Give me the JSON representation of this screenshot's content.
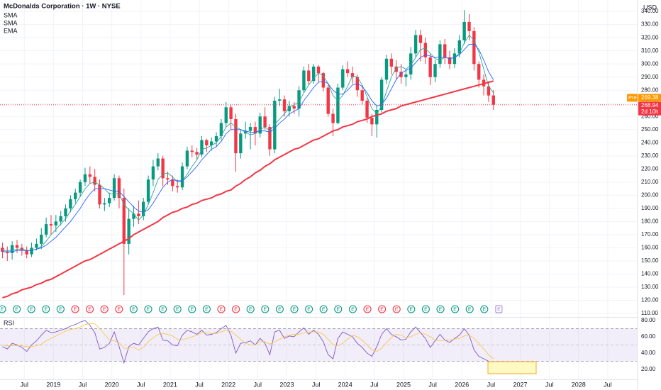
{
  "chart_data": {
    "type": "candlestick",
    "title": "McDonalds Corporation · 1W · NYSE",
    "currency": "USD",
    "x": [
      "2018-02",
      "2018-03",
      "2018-04",
      "2018-05",
      "2018-06",
      "2018-07",
      "2018-08",
      "2018-09",
      "2018-10",
      "2018-11",
      "2018-12",
      "2019-01",
      "2019-02",
      "2019-03",
      "2019-04",
      "2019-05",
      "2019-06",
      "2019-07",
      "2019-08",
      "2019-09",
      "2019-10",
      "2019-11",
      "2019-12",
      "2020-01",
      "2020-02",
      "2020-03",
      "2020-04",
      "2020-05",
      "2020-06",
      "2020-07",
      "2020-08",
      "2020-09",
      "2020-10",
      "2020-11",
      "2020-12",
      "2021-01",
      "2021-02",
      "2021-03",
      "2021-04",
      "2021-05",
      "2021-06",
      "2021-07",
      "2021-08",
      "2021-09",
      "2021-10",
      "2021-11",
      "2021-12",
      "2022-01",
      "2022-02",
      "2022-03",
      "2022-04",
      "2022-05",
      "2022-06",
      "2022-07",
      "2022-08",
      "2022-09",
      "2022-10",
      "2022-11",
      "2022-12",
      "2023-01",
      "2023-02",
      "2023-03",
      "2023-04",
      "2023-05",
      "2023-06",
      "2023-07",
      "2023-08",
      "2023-09",
      "2023-10",
      "2023-11",
      "2023-12",
      "2024-01",
      "2024-02",
      "2024-03",
      "2024-04",
      "2024-05",
      "2024-06",
      "2024-07",
      "2024-08",
      "2024-09",
      "2024-10",
      "2024-11",
      "2024-12",
      "2025-01",
      "2025-02",
      "2025-03",
      "2025-04",
      "2025-05",
      "2025-06",
      "2025-07",
      "2025-08",
      "2025-09",
      "2025-10",
      "2025-11",
      "2025-12",
      "2026-01",
      "2026-02",
      "2026-03",
      "2026-04",
      "2026-05",
      "2026-06",
      "2026-07"
    ],
    "open": [
      160,
      157,
      156,
      162,
      160,
      158,
      155,
      160,
      163,
      170,
      178,
      177,
      180,
      184,
      190,
      197,
      202,
      210,
      216,
      214,
      208,
      193,
      194,
      198,
      213,
      198,
      163,
      182,
      186,
      184,
      195,
      212,
      222,
      228,
      213,
      212,
      207,
      206,
      222,
      234,
      233,
      231,
      242,
      238,
      241,
      245,
      255,
      267,
      258,
      232,
      247,
      249,
      252,
      247,
      260,
      252,
      235,
      272,
      273,
      264,
      268,
      266,
      280,
      295,
      287,
      298,
      293,
      282,
      262,
      255,
      282,
      296,
      293,
      290,
      280,
      272,
      259,
      254,
      265,
      288,
      304,
      298,
      294,
      290,
      292,
      308,
      322,
      316,
      305,
      290,
      300,
      315,
      305,
      300,
      308,
      318,
      332,
      325,
      300,
      288,
      283,
      276
    ],
    "high": [
      164,
      161,
      165,
      166,
      163,
      161,
      164,
      167,
      175,
      183,
      185,
      185,
      188,
      193,
      200,
      205,
      212,
      221,
      222,
      220,
      212,
      198,
      202,
      216,
      215,
      205,
      190,
      192,
      196,
      198,
      215,
      227,
      232,
      230,
      218,
      215,
      212,
      225,
      237,
      238,
      236,
      245,
      243,
      244,
      248,
      258,
      271,
      269,
      262,
      250,
      256,
      255,
      256,
      263,
      267,
      254,
      275,
      281,
      276,
      272,
      271,
      283,
      298,
      300,
      300,
      299,
      294,
      284,
      266,
      285,
      299,
      302,
      298,
      292,
      284,
      274,
      262,
      268,
      290,
      307,
      308,
      303,
      300,
      296,
      313,
      326,
      326,
      320,
      308,
      303,
      318,
      319,
      310,
      312,
      322,
      341,
      338,
      328,
      302,
      292,
      287,
      280
    ],
    "low": [
      152,
      150,
      151,
      156,
      154,
      152,
      153,
      158,
      159,
      168,
      170,
      172,
      177,
      180,
      187,
      194,
      199,
      207,
      209,
      203,
      190,
      188,
      191,
      196,
      190,
      124,
      155,
      176,
      178,
      181,
      193,
      207,
      219,
      207,
      208,
      203,
      202,
      204,
      220,
      229,
      227,
      229,
      233,
      234,
      237,
      242,
      252,
      250,
      218,
      228,
      243,
      235,
      238,
      244,
      250,
      230,
      232,
      268,
      260,
      260,
      262,
      260,
      278,
      284,
      285,
      286,
      279,
      260,
      245,
      254,
      280,
      290,
      285,
      275,
      269,
      255,
      245,
      244,
      263,
      285,
      292,
      288,
      285,
      283,
      288,
      305,
      302,
      300,
      284,
      286,
      297,
      300,
      296,
      297,
      305,
      315,
      318,
      295,
      282,
      276,
      271,
      265
    ],
    "close": [
      157,
      156,
      162,
      160,
      158,
      155,
      160,
      163,
      170,
      178,
      177,
      180,
      184,
      190,
      197,
      202,
      210,
      216,
      214,
      208,
      193,
      194,
      198,
      213,
      198,
      163,
      182,
      186,
      184,
      195,
      212,
      222,
      228,
      213,
      212,
      207,
      206,
      222,
      234,
      233,
      231,
      242,
      238,
      241,
      245,
      255,
      267,
      258,
      232,
      247,
      249,
      252,
      247,
      260,
      252,
      235,
      272,
      273,
      264,
      268,
      266,
      280,
      295,
      287,
      298,
      293,
      282,
      262,
      255,
      282,
      296,
      293,
      290,
      280,
      272,
      259,
      254,
      265,
      288,
      304,
      298,
      294,
      290,
      292,
      308,
      322,
      316,
      305,
      290,
      300,
      315,
      305,
      300,
      308,
      318,
      332,
      325,
      300,
      288,
      283,
      276,
      268.94
    ],
    "up_color": "#089981",
    "down_color": "#f23645",
    "series": [
      {
        "name": "SMA",
        "color": "#2aa79b",
        "values": [
          158,
          158,
          158,
          159,
          159,
          158,
          158,
          159,
          161,
          165,
          170,
          174,
          178,
          182,
          188,
          193,
          199,
          205,
          209,
          210,
          208,
          205,
          201,
          201,
          201,
          193,
          189,
          186,
          181,
          185,
          193,
          202,
          212,
          216,
          217,
          214,
          210,
          211,
          216,
          222,
          227,
          235,
          236,
          238,
          240,
          245,
          252,
          255,
          252,
          250,
          248,
          246,
          247,
          250,
          252,
          249,
          254,
          258,
          262,
          267,
          269,
          271,
          278,
          284,
          289,
          293,
          291,
          285,
          276,
          272,
          276,
          283,
          291,
          290,
          284,
          275,
          266,
          262,
          268,
          279,
          290,
          297,
          298,
          296,
          299,
          305,
          311,
          312,
          308,
          304,
          303,
          305,
          304,
          305,
          308,
          316,
          322,
          318,
          309,
          296,
          283,
          278
        ]
      },
      {
        "name": "SMA",
        "color": "#2962ff",
        "values": [
          157,
          157,
          157,
          158,
          158,
          158,
          158,
          159,
          160,
          162,
          165,
          168,
          172,
          176,
          180,
          185,
          190,
          196,
          201,
          205,
          205,
          205,
          204,
          203,
          203,
          199,
          195,
          191,
          188,
          187,
          189,
          194,
          200,
          206,
          210,
          212,
          211,
          211,
          214,
          218,
          222,
          227,
          231,
          235,
          237,
          241,
          247,
          250,
          250,
          250,
          249,
          248,
          248,
          249,
          249,
          248,
          251,
          255,
          258,
          262,
          264,
          266,
          272,
          277,
          282,
          286,
          287,
          285,
          280,
          277,
          277,
          280,
          284,
          285,
          283,
          278,
          272,
          268,
          269,
          274,
          281,
          288,
          293,
          295,
          297,
          301,
          305,
          307,
          306,
          305,
          305,
          305,
          304,
          305,
          307,
          311,
          315,
          315,
          311,
          303,
          294,
          288
        ]
      },
      {
        "name": "EMA",
        "color": "#f23645",
        "values": [
          122,
          123,
          125,
          126,
          128,
          129,
          130,
          132,
          133,
          135,
          136,
          138,
          140,
          142,
          144,
          146,
          148,
          150,
          151,
          153,
          155,
          157,
          159,
          161,
          163,
          165,
          167,
          170,
          172,
          174,
          176,
          178,
          180,
          183,
          185,
          187,
          188,
          190,
          191,
          193,
          194,
          196,
          197,
          198,
          200,
          201,
          203,
          204,
          207,
          209,
          212,
          214,
          217,
          219,
          222,
          224,
          227,
          229,
          231,
          233,
          235,
          236,
          238,
          240,
          242,
          243,
          245,
          247,
          249,
          250,
          252,
          253,
          254,
          256,
          257,
          258,
          260,
          261,
          262,
          264,
          265,
          266,
          268,
          269,
          270,
          271,
          272,
          273,
          274,
          275,
          276,
          277,
          278,
          279,
          280,
          281,
          282,
          283,
          284,
          285,
          286,
          287
        ]
      }
    ],
    "premarket_label": "Pre",
    "premarket_price": 269.38,
    "last_price": 268.94,
    "countdown": "2d 10h",
    "events_label": "E",
    "xlim": [
      "2018-02",
      "2029-01"
    ],
    "xticks": [
      {
        "value": "2018-07",
        "label": "Jul"
      },
      {
        "value": "2019-01",
        "label": "2019"
      },
      {
        "value": "2019-07",
        "label": "Jul"
      },
      {
        "value": "2020-01",
        "label": "2020"
      },
      {
        "value": "2020-07",
        "label": "Jul"
      },
      {
        "value": "2021-01",
        "label": "2021"
      },
      {
        "value": "2021-07",
        "label": "Jul"
      },
      {
        "value": "2022-01",
        "label": "2022"
      },
      {
        "value": "2022-07",
        "label": "Jul"
      },
      {
        "value": "2023-01",
        "label": "2023"
      },
      {
        "value": "2023-07",
        "label": "Jul"
      },
      {
        "value": "2024-01",
        "label": "2024"
      },
      {
        "value": "2024-07",
        "label": "Jul"
      },
      {
        "value": "2025-01",
        "label": "2025"
      },
      {
        "value": "2025-07",
        "label": "Jul"
      },
      {
        "value": "2026-01",
        "label": "2026"
      },
      {
        "value": "2026-07",
        "label": "Jul"
      },
      {
        "value": "2027-01",
        "label": "2027"
      },
      {
        "value": "2027-07",
        "label": "Jul"
      },
      {
        "value": "2028-01",
        "label": "2028"
      },
      {
        "value": "2028-07",
        "label": "Jul"
      }
    ],
    "ylim": [
      108.4,
      348.7
    ],
    "yticks": [
      {
        "value": 110,
        "label": "110.00"
      },
      {
        "value": 120,
        "label": "120.00"
      },
      {
        "value": 130,
        "label": "130.00"
      },
      {
        "value": 140,
        "label": "140.00"
      },
      {
        "value": 150,
        "label": "150.00"
      },
      {
        "value": 160,
        "label": "160.00"
      },
      {
        "value": 170,
        "label": "170.00"
      },
      {
        "value": 180,
        "label": "180.00"
      },
      {
        "value": 190,
        "label": "190.00"
      },
      {
        "value": 200,
        "label": "200.00"
      },
      {
        "value": 210,
        "label": "210.00"
      },
      {
        "value": 220,
        "label": "220.00"
      },
      {
        "value": 230,
        "label": "230.00"
      },
      {
        "value": 240,
        "label": "240.00"
      },
      {
        "value": 250,
        "label": "250.00"
      },
      {
        "value": 260,
        "label": "260.00"
      },
      {
        "value": 270,
        "label": "270.00"
      },
      {
        "value": 280,
        "label": "280.00"
      },
      {
        "value": 290,
        "label": "290.00"
      },
      {
        "value": 300,
        "label": "300.00"
      },
      {
        "value": 310,
        "label": "310.00"
      },
      {
        "value": 320,
        "label": "320.00"
      },
      {
        "value": 330,
        "label": "330.00"
      },
      {
        "value": 340,
        "label": "340.00"
      }
    ],
    "grid": true,
    "rsi": {
      "title": "RSI",
      "series": [
        {
          "color": "#7e57c2",
          "values": [
            48,
            45,
            52,
            50,
            47,
            42,
            50,
            55,
            62,
            68,
            65,
            66,
            68,
            70,
            73,
            75,
            78,
            80,
            74,
            65,
            45,
            47,
            52,
            66,
            48,
            28,
            48,
            52,
            50,
            58,
            66,
            70,
            72,
            56,
            55,
            50,
            49,
            62,
            68,
            66,
            63,
            68,
            62,
            63,
            65,
            70,
            74,
            62,
            40,
            52,
            53,
            55,
            50,
            58,
            52,
            38,
            66,
            68,
            58,
            61,
            60,
            66,
            71,
            63,
            68,
            63,
            54,
            38,
            33,
            58,
            66,
            63,
            60,
            52,
            47,
            40,
            36,
            48,
            63,
            70,
            63,
            60,
            56,
            57,
            66,
            72,
            65,
            58,
            47,
            55,
            63,
            56,
            53,
            58,
            62,
            70,
            62,
            44,
            36,
            33,
            30,
            28
          ]
        },
        {
          "color": "#f9c74f",
          "values": [
            50,
            49,
            49,
            49,
            49,
            48,
            48,
            49,
            51,
            55,
            58,
            61,
            64,
            67,
            69,
            70,
            72,
            75,
            76,
            76,
            70,
            63,
            56,
            55,
            53,
            46,
            46,
            47,
            44,
            47,
            54,
            59,
            63,
            64,
            63,
            61,
            57,
            56,
            58,
            60,
            62,
            65,
            65,
            64,
            64,
            66,
            68,
            67,
            62,
            57,
            52,
            50,
            50,
            54,
            54,
            51,
            54,
            57,
            60,
            62,
            63,
            63,
            65,
            66,
            66,
            66,
            63,
            57,
            50,
            49,
            52,
            57,
            62,
            60,
            56,
            50,
            44,
            42,
            46,
            53,
            59,
            63,
            62,
            59,
            60,
            63,
            65,
            63,
            60,
            56,
            55,
            56,
            56,
            57,
            58,
            61,
            62,
            58,
            52,
            45,
            38,
            33
          ]
        }
      ],
      "levels": [
        70,
        50,
        30
      ],
      "band_color": "#7e57c2",
      "ylim": [
        7.8,
        84.3
      ],
      "yticks": [
        {
          "value": 20,
          "label": "20.00"
        },
        {
          "value": 40,
          "label": "40.00"
        },
        {
          "value": 60,
          "label": "60.00"
        },
        {
          "value": 80,
          "label": "80.00"
        }
      ]
    }
  }
}
